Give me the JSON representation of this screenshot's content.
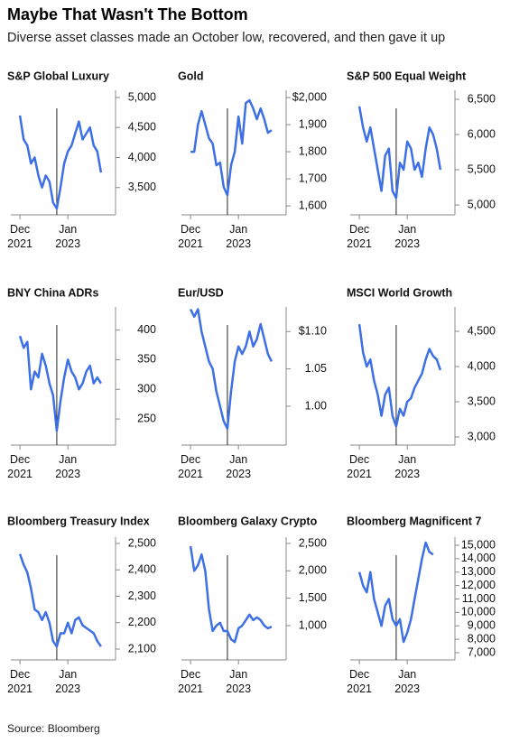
{
  "title": "Maybe That Wasn't The Bottom",
  "subtitle": "Diverse asset classes made an October low, recovered, and then gave it up",
  "source": "Source: Bloomberg",
  "chart_data": [
    {
      "type": "line",
      "title": "S&P Global Luxury",
      "color": "#3d6fe6",
      "vline_x": "2022-10",
      "x": [
        "2021-12",
        "2022-01",
        "2022-02",
        "2022-03",
        "2022-04",
        "2022-05",
        "2022-06",
        "2022-07",
        "2022-08",
        "2022-09",
        "2022-10",
        "2022-11",
        "2022-12",
        "2023-01",
        "2023-02",
        "2023-03",
        "2023-04",
        "2023-05",
        "2023-06",
        "2023-07",
        "2023-08",
        "2023-09",
        "2023-10"
      ],
      "values": [
        4700,
        4300,
        4200,
        3900,
        4000,
        3700,
        3500,
        3700,
        3600,
        3250,
        3150,
        3500,
        3900,
        4100,
        4200,
        4400,
        4600,
        4300,
        4400,
        4500,
        4200,
        4100,
        3750
      ],
      "xlim": [
        "2021-11",
        "2023-11"
      ],
      "xticks": [
        {
          "value": "2021-12",
          "label": "Dec 2021"
        },
        {
          "value": "2023-01",
          "label": "Jan 2023"
        }
      ],
      "ylim": [
        3045,
        5120
      ],
      "yticks": [
        {
          "value": 3500,
          "label": "3,500"
        },
        {
          "value": 4000,
          "label": "4,000"
        },
        {
          "value": 4500,
          "label": "4,500"
        },
        {
          "value": 5000,
          "label": "5,000"
        }
      ]
    },
    {
      "type": "line",
      "title": "Gold",
      "color": "#3d6fe6",
      "vline_x": "2022-10",
      "x": [
        "2021-12",
        "2022-01",
        "2022-02",
        "2022-03",
        "2022-04",
        "2022-05",
        "2022-06",
        "2022-07",
        "2022-08",
        "2022-09",
        "2022-10",
        "2022-11",
        "2022-12",
        "2023-01",
        "2023-02",
        "2023-03",
        "2023-04",
        "2023-05",
        "2023-06",
        "2023-07",
        "2023-08",
        "2023-09",
        "2023-10"
      ],
      "values": [
        1800,
        1800,
        1900,
        1950,
        1900,
        1850,
        1830,
        1750,
        1760,
        1670,
        1640,
        1750,
        1800,
        1930,
        1830,
        1980,
        1990,
        1960,
        1920,
        1960,
        1920,
        1870,
        1880
      ],
      "xlim": [
        "2021-11",
        "2023-11"
      ],
      "xticks": [
        {
          "value": "2021-12",
          "label": "Dec 2021"
        },
        {
          "value": "2023-01",
          "label": "Jan 2023"
        }
      ],
      "ylim": [
        1567,
        2027
      ],
      "yticks": [
        {
          "value": 1600,
          "label": "1,600"
        },
        {
          "value": 1700,
          "label": "1,700"
        },
        {
          "value": 1800,
          "label": "1,800"
        },
        {
          "value": 1900,
          "label": "1,900"
        },
        {
          "value": 2000,
          "label": "$2,000"
        }
      ]
    },
    {
      "type": "line",
      "title": "S&P 500 Equal Weight",
      "color": "#3d6fe6",
      "vline_x": "2022-10",
      "x": [
        "2021-12",
        "2022-01",
        "2022-02",
        "2022-03",
        "2022-04",
        "2022-05",
        "2022-06",
        "2022-07",
        "2022-08",
        "2022-09",
        "2022-10",
        "2022-11",
        "2022-12",
        "2023-01",
        "2023-02",
        "2023-03",
        "2023-04",
        "2023-05",
        "2023-06",
        "2023-07",
        "2023-08",
        "2023-09",
        "2023-10"
      ],
      "values": [
        6400,
        6100,
        5900,
        6100,
        5800,
        5500,
        5200,
        5700,
        5800,
        5200,
        5100,
        5600,
        5500,
        5900,
        5800,
        5500,
        5600,
        5400,
        5800,
        6100,
        6000,
        5800,
        5500
      ],
      "xlim": [
        "2021-11",
        "2023-11"
      ],
      "xticks": [
        {
          "value": "2021-12",
          "label": "Dec 2021"
        },
        {
          "value": "2023-01",
          "label": "Jan 2023"
        }
      ],
      "ylim": [
        4860,
        6628
      ],
      "yticks": [
        {
          "value": 5000,
          "label": "5,000"
        },
        {
          "value": 5500,
          "label": "5,500"
        },
        {
          "value": 6000,
          "label": "6,000"
        },
        {
          "value": 6500,
          "label": "6,500"
        }
      ]
    },
    {
      "type": "line",
      "title": "BNY China ADRs",
      "color": "#3d6fe6",
      "vline_x": "2022-10",
      "x": [
        "2021-12",
        "2022-01",
        "2022-02",
        "2022-03",
        "2022-04",
        "2022-05",
        "2022-06",
        "2022-07",
        "2022-08",
        "2022-09",
        "2022-10",
        "2022-11",
        "2022-12",
        "2023-01",
        "2023-02",
        "2023-03",
        "2023-04",
        "2023-05",
        "2023-06",
        "2023-07",
        "2023-08",
        "2023-09",
        "2023-10"
      ],
      "values": [
        390,
        370,
        380,
        300,
        330,
        320,
        360,
        340,
        310,
        290,
        230,
        280,
        320,
        350,
        330,
        320,
        300,
        310,
        330,
        340,
        310,
        320,
        310
      ],
      "xlim": [
        "2021-11",
        "2023-11"
      ],
      "xticks": [
        {
          "value": "2021-12",
          "label": "Dec 2021"
        },
        {
          "value": "2023-01",
          "label": "Jan 2023"
        }
      ],
      "ylim": [
        206,
        439
      ],
      "yticks": [
        250,
        300,
        350,
        400
      ]
    },
    {
      "type": "line",
      "title": "Eur/USD",
      "color": "#3d6fe6",
      "vline_x": "2022-10",
      "x": [
        "2021-12",
        "2022-01",
        "2022-02",
        "2022-03",
        "2022-04",
        "2022-05",
        "2022-06",
        "2022-07",
        "2022-08",
        "2022-09",
        "2022-10",
        "2022-11",
        "2022-12",
        "2023-01",
        "2023-02",
        "2023-03",
        "2023-04",
        "2023-05",
        "2023-06",
        "2023-07",
        "2023-08",
        "2023-09",
        "2023-10"
      ],
      "values": [
        1.13,
        1.12,
        1.13,
        1.1,
        1.08,
        1.06,
        1.05,
        1.02,
        1.0,
        0.98,
        0.97,
        1.02,
        1.06,
        1.08,
        1.07,
        1.08,
        1.1,
        1.08,
        1.09,
        1.11,
        1.09,
        1.07,
        1.06
      ],
      "xlim": [
        "2021-11",
        "2023-11"
      ],
      "xticks": [
        {
          "value": "2021-12",
          "label": "Dec 2021"
        },
        {
          "value": "2023-01",
          "label": "Jan 2023"
        }
      ],
      "ylim": [
        0.948,
        1.133
      ],
      "yticks": [
        {
          "value": 1.0,
          "label": "1.00"
        },
        1.05,
        {
          "value": 1.1,
          "label": "$1.10"
        }
      ]
    },
    {
      "type": "line",
      "title": "MSCI World Growth",
      "color": "#3d6fe6",
      "vline_x": "2022-10",
      "x": [
        "2021-12",
        "2022-01",
        "2022-02",
        "2022-03",
        "2022-04",
        "2022-05",
        "2022-06",
        "2022-07",
        "2022-08",
        "2022-09",
        "2022-10",
        "2022-11",
        "2022-12",
        "2023-01",
        "2023-02",
        "2023-03",
        "2023-04",
        "2023-05",
        "2023-06",
        "2023-07",
        "2023-08",
        "2023-09",
        "2023-10"
      ],
      "values": [
        4600,
        4200,
        4000,
        4100,
        3800,
        3600,
        3300,
        3600,
        3700,
        3300,
        3150,
        3400,
        3300,
        3500,
        3550,
        3700,
        3800,
        3900,
        4100,
        4250,
        4150,
        4100,
        3950
      ],
      "xlim": [
        "2021-11",
        "2023-11"
      ],
      "xticks": [
        {
          "value": "2021-12",
          "label": "Dec 2021"
        },
        {
          "value": "2023-01",
          "label": "Jan 2023"
        }
      ],
      "ylim": [
        2885,
        4846
      ],
      "yticks": [
        {
          "value": 3000,
          "label": "3,000"
        },
        {
          "value": 3500,
          "label": "3,500"
        },
        {
          "value": 4000,
          "label": "4,000"
        },
        {
          "value": 4500,
          "label": "4,500"
        }
      ]
    },
    {
      "type": "line",
      "title": "Bloomberg Treasury Index",
      "color": "#3d6fe6",
      "vline_x": "2022-10",
      "x": [
        "2021-12",
        "2022-01",
        "2022-02",
        "2022-03",
        "2022-04",
        "2022-05",
        "2022-06",
        "2022-07",
        "2022-08",
        "2022-09",
        "2022-10",
        "2022-11",
        "2022-12",
        "2023-01",
        "2023-02",
        "2023-03",
        "2023-04",
        "2023-05",
        "2023-06",
        "2023-07",
        "2023-08",
        "2023-09",
        "2023-10"
      ],
      "values": [
        2460,
        2420,
        2390,
        2330,
        2250,
        2240,
        2210,
        2240,
        2200,
        2130,
        2110,
        2160,
        2160,
        2200,
        2160,
        2210,
        2220,
        2190,
        2180,
        2170,
        2160,
        2130,
        2110
      ],
      "xlim": [
        "2021-11",
        "2023-11"
      ],
      "xticks": [
        {
          "value": "2021-12",
          "label": "Dec 2021"
        },
        {
          "value": "2023-01",
          "label": "Jan 2023"
        }
      ],
      "ylim": [
        2059,
        2524
      ],
      "yticks": [
        {
          "value": 2100,
          "label": "2,100"
        },
        {
          "value": 2200,
          "label": "2,200"
        },
        {
          "value": 2300,
          "label": "2,300"
        },
        {
          "value": 2400,
          "label": "2,400"
        },
        {
          "value": 2500,
          "label": "2,500"
        }
      ]
    },
    {
      "type": "line",
      "title": "Bloomberg Galaxy Crypto",
      "color": "#3d6fe6",
      "vline_x": "2022-10",
      "x": [
        "2021-12",
        "2022-01",
        "2022-02",
        "2022-03",
        "2022-04",
        "2022-05",
        "2022-06",
        "2022-07",
        "2022-08",
        "2022-09",
        "2022-10",
        "2022-11",
        "2022-12",
        "2023-01",
        "2023-02",
        "2023-03",
        "2023-04",
        "2023-05",
        "2023-06",
        "2023-07",
        "2023-08",
        "2023-09",
        "2023-10"
      ],
      "values": [
        2450,
        2000,
        2100,
        2300,
        2000,
        1300,
        900,
        1000,
        1050,
        900,
        900,
        750,
        700,
        950,
        1000,
        1100,
        1200,
        1100,
        1150,
        1100,
        1000,
        950,
        980
      ],
      "xlim": [
        "2021-11",
        "2023-11"
      ],
      "xticks": [
        {
          "value": "2021-12",
          "label": "Dec 2021"
        },
        {
          "value": "2023-01",
          "label": "Jan 2023"
        }
      ],
      "ylim": [
        373,
        2615
      ],
      "yticks": [
        {
          "value": 1000,
          "label": "1,000"
        },
        {
          "value": 1500,
          "label": "1,500"
        },
        {
          "value": 2000,
          "label": "2,000"
        },
        {
          "value": 2500,
          "label": "2,500"
        }
      ]
    },
    {
      "type": "line",
      "title": "Bloomberg Magnificent 7",
      "color": "#3d6fe6",
      "vline_x": "2022-10",
      "x": [
        "2021-12",
        "2022-01",
        "2022-02",
        "2022-03",
        "2022-04",
        "2022-05",
        "2022-06",
        "2022-07",
        "2022-08",
        "2022-09",
        "2022-10",
        "2022-11",
        "2022-12",
        "2023-01",
        "2023-02",
        "2023-03",
        "2023-04",
        "2023-05",
        "2023-06",
        "2023-07",
        "2023-08"
      ],
      "values": [
        13000,
        12000,
        11500,
        13000,
        11000,
        10000,
        9000,
        10500,
        11000,
        9500,
        9000,
        9500,
        7800,
        8500,
        9500,
        11000,
        12500,
        14000,
        15200,
        14500,
        14300
      ],
      "xlim": [
        "2021-11",
        "2023-11"
      ],
      "xticks": [
        {
          "value": "2021-12",
          "label": "Dec 2021"
        },
        {
          "value": "2023-01",
          "label": "Jan 2023"
        }
      ],
      "ylim": [
        6463,
        15604
      ],
      "yticks": [
        {
          "value": 7000,
          "label": "7,000"
        },
        {
          "value": 8000,
          "label": "8,000"
        },
        {
          "value": 9000,
          "label": "9,000"
        },
        {
          "value": 10000,
          "label": "10,000"
        },
        {
          "value": 11000,
          "label": "11,000"
        },
        {
          "value": 12000,
          "label": "12,000"
        },
        {
          "value": 13000,
          "label": "13,000"
        },
        {
          "value": 14000,
          "label": "14,000"
        },
        {
          "value": 15000,
          "label": "15,000"
        }
      ]
    }
  ]
}
